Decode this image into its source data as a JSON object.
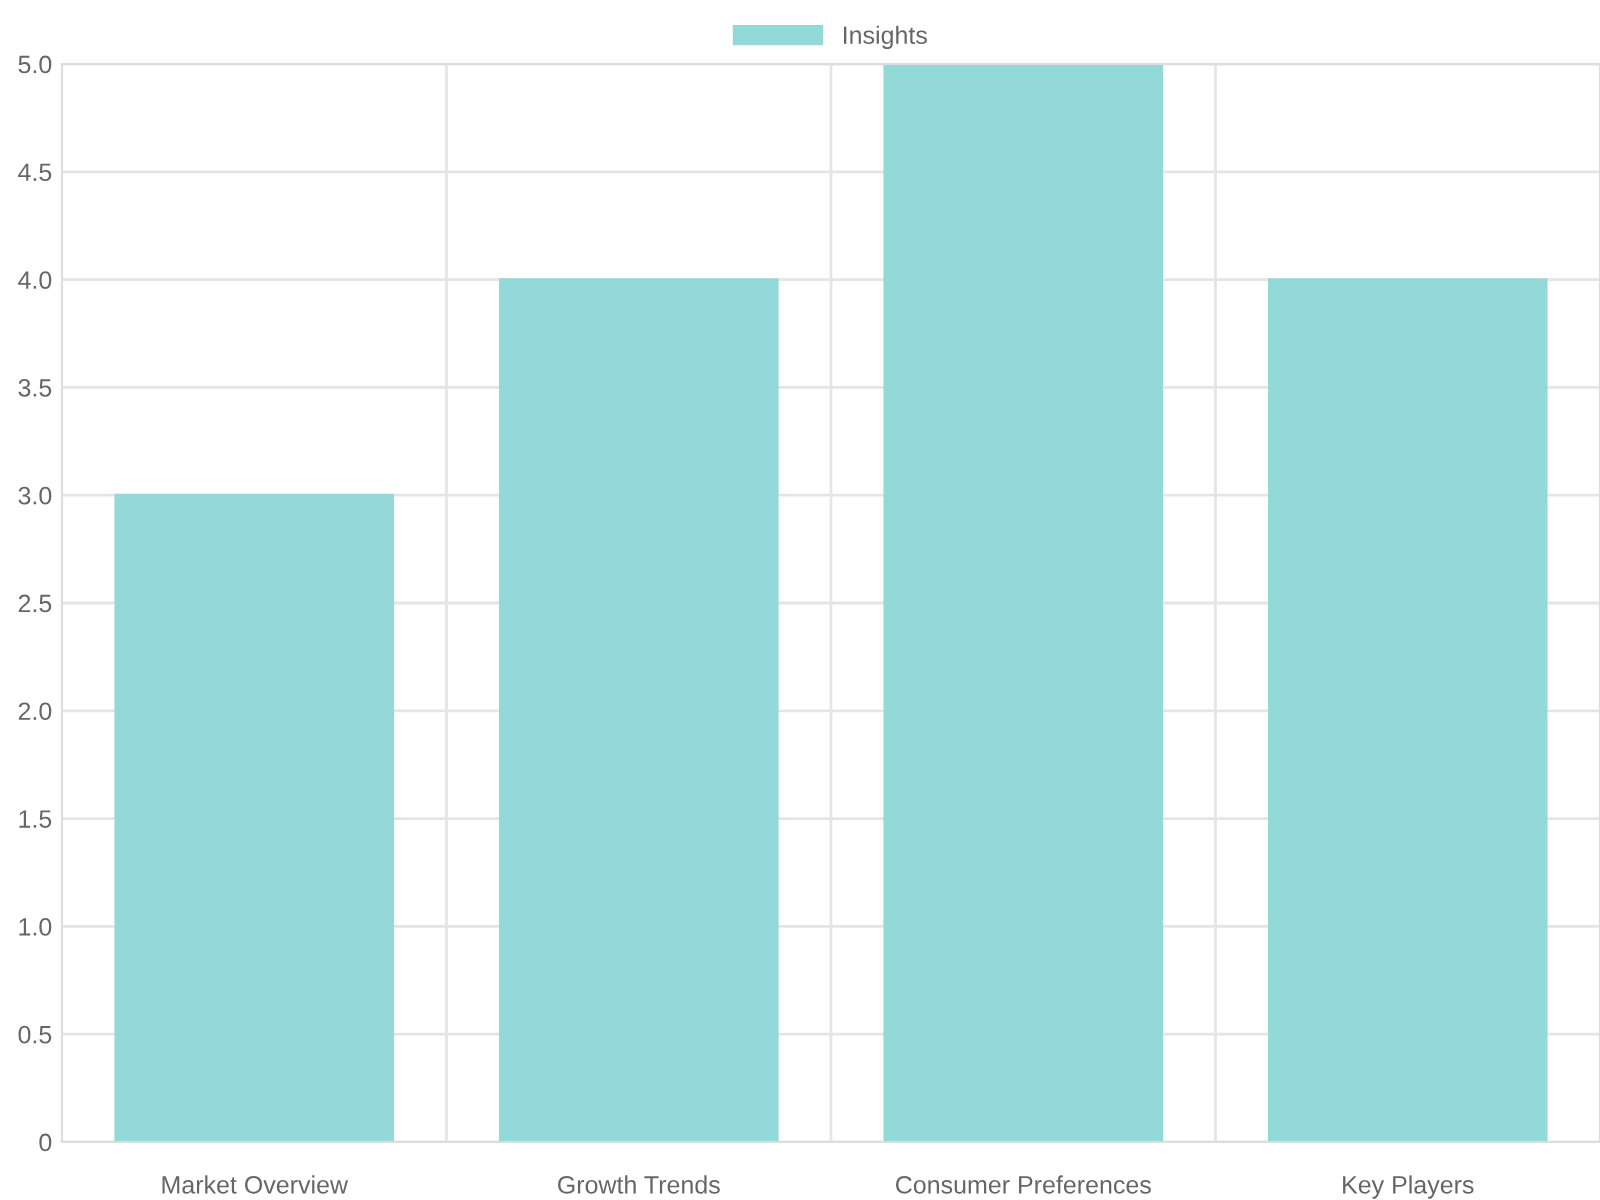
{
  "chart_data": {
    "type": "bar",
    "categories": [
      "Market Overview",
      "Growth Trends",
      "Consumer Preferences",
      "Key Players"
    ],
    "series": [
      {
        "name": "Insights",
        "color": "#93d9d9",
        "values": [
          3,
          4,
          5,
          4
        ]
      }
    ],
    "ylim": [
      0,
      5
    ],
    "yticks": [
      0,
      0.5,
      {
        "value": 1,
        "label": "1.0"
      },
      1.5,
      {
        "value": 2,
        "label": "2.0"
      },
      2.5,
      {
        "value": 3,
        "label": "3.0"
      },
      3.5,
      {
        "value": 4,
        "label": "4.0"
      },
      4.5,
      {
        "value": 5,
        "label": "5.0"
      }
    ],
    "grid": true,
    "legend": "top"
  }
}
